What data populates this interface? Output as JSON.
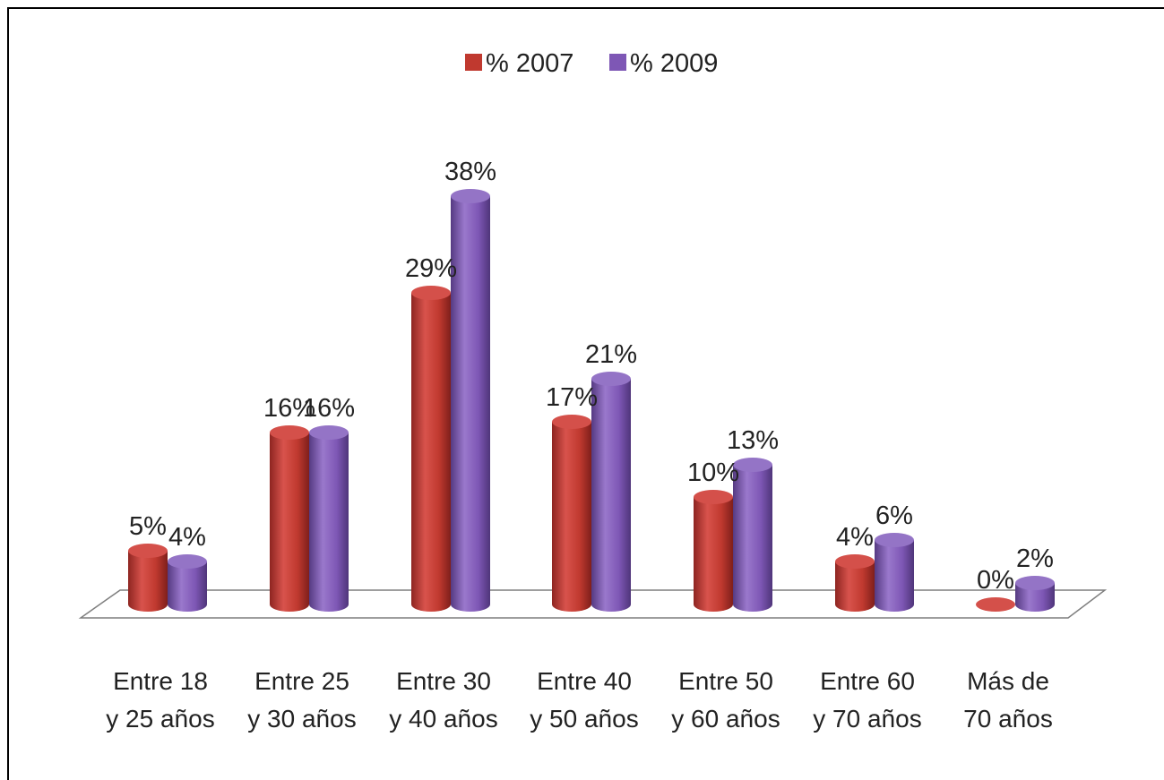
{
  "chart_data": {
    "type": "bar",
    "title": "",
    "xlabel": "",
    "ylabel": "",
    "ylim": [
      0,
      40
    ],
    "grid": false,
    "legend_position": "top",
    "categories": [
      [
        "Entre 18",
        "y 25 años"
      ],
      [
        "Entre 25",
        "y 30 años"
      ],
      [
        "Entre 30",
        "y 40 años"
      ],
      [
        "Entre 40",
        "y 50 años"
      ],
      [
        "Entre 50",
        "y 60 años"
      ],
      [
        "Entre 60",
        "y 70 años"
      ],
      [
        "Más de",
        "70 años"
      ]
    ],
    "series": [
      {
        "name": "% 2007",
        "color": "#c0392f",
        "values": [
          5,
          16,
          29,
          17,
          10,
          4,
          0
        ],
        "labels": [
          "5%",
          "16%",
          "29%",
          "17%",
          "10%",
          "4%",
          "0%"
        ]
      },
      {
        "name": "% 2009",
        "color": "#7e57b5",
        "values": [
          4,
          16,
          38,
          21,
          13,
          6,
          2
        ],
        "labels": [
          "4%",
          "16%",
          "38%",
          "21%",
          "13%",
          "6%",
          "2%"
        ]
      }
    ]
  }
}
